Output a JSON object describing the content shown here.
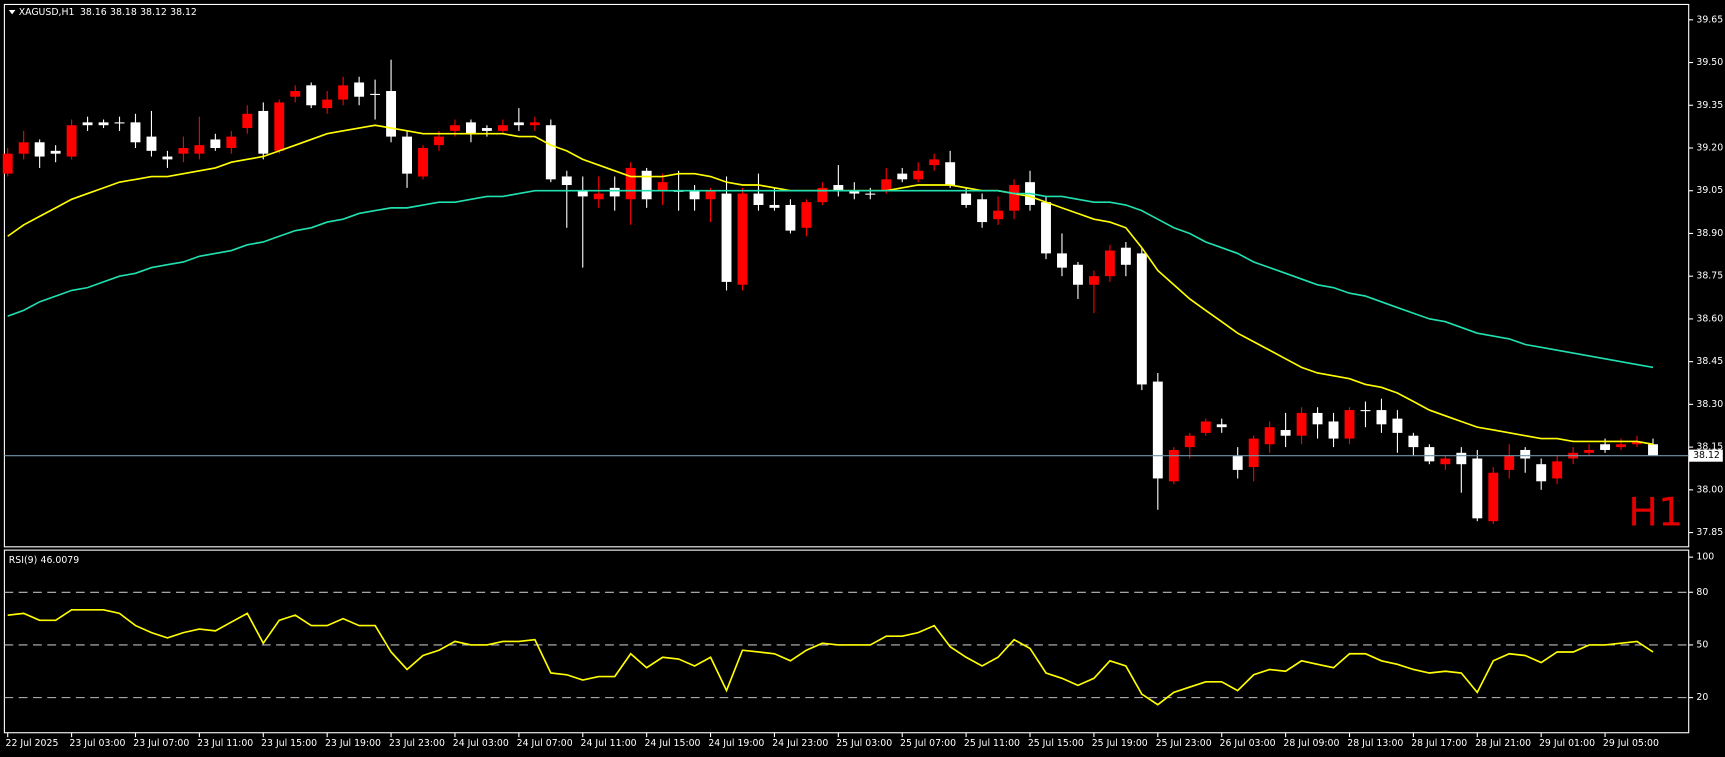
{
  "chart_data": [
    {
      "type": "candlestick",
      "title": "XAGUSD,H1",
      "watermark": "H1",
      "categories": [
        "22 Jul 2025",
        null,
        null,
        null,
        "23 Jul 03:00",
        null,
        null,
        null,
        "23 Jul 07:00",
        null,
        null,
        null,
        "23 Jul 11:00",
        null,
        null,
        null,
        "23 Jul 15:00",
        null,
        null,
        null,
        "23 Jul 19:00",
        null,
        null,
        null,
        "23 Jul 23:00",
        null,
        null,
        null,
        "24 Jul 03:00",
        null,
        null,
        null,
        "24 Jul 07:00",
        null,
        null,
        null,
        "24 Jul 11:00",
        null,
        null,
        null,
        "24 Jul 15:00",
        null,
        null,
        null,
        "24 Jul 19:00",
        null,
        null,
        null,
        "24 Jul 23:00",
        null,
        null,
        null,
        "25 Jul 03:00",
        null,
        null,
        null,
        "25 Jul 07:00",
        null,
        null,
        null,
        "25 Jul 11:00",
        null,
        null,
        null,
        "25 Jul 15:00",
        null,
        null,
        null,
        "25 Jul 19:00",
        null,
        null,
        null,
        "25 Jul 23:00",
        null,
        null,
        null,
        "26 Jul 03:00",
        null,
        null,
        null,
        "28 Jul 09:00",
        null,
        null,
        null,
        "28 Jul 13:00",
        null,
        null,
        null,
        "28 Jul 17:00",
        null,
        null,
        null,
        "28 Jul 21:00",
        null,
        null,
        null,
        "29 Jul 01:00",
        null,
        null,
        null,
        "29 Jul 05:00",
        null,
        null,
        null
      ],
      "series": [
        {
          "up_color": "#ff0000",
          "down_color": "#ffffff",
          "open": [
            39.11,
            39.18,
            39.22,
            39.19,
            39.17,
            39.29,
            39.29,
            39.29,
            39.29,
            39.24,
            39.17,
            39.18,
            39.18,
            39.23,
            39.2,
            39.27,
            39.33,
            39.19,
            39.38,
            39.42,
            39.34,
            39.37,
            39.43,
            39.39,
            39.4,
            39.24,
            39.1,
            39.21,
            39.26,
            39.29,
            39.27,
            39.26,
            39.29,
            39.28,
            39.28,
            39.1,
            39.05,
            39.02,
            39.06,
            39.02,
            39.12,
            39.05,
            39.05,
            39.05,
            39.02,
            39.04,
            38.72,
            39.04,
            39.0,
            39.0,
            38.92,
            39.01,
            39.07,
            39.05,
            39.04,
            39.05,
            39.11,
            39.09,
            39.14,
            39.15,
            39.04,
            39.02,
            38.95,
            38.98,
            39.08,
            39.01,
            38.83,
            38.79,
            38.72,
            38.75,
            38.85,
            38.83,
            38.38,
            38.03,
            38.15,
            38.2,
            38.23,
            38.12,
            38.08,
            38.16,
            38.21,
            38.19,
            38.27,
            38.24,
            38.18,
            38.28,
            38.28,
            38.25,
            38.19,
            38.15,
            38.09,
            38.13,
            38.11,
            37.89,
            38.07,
            38.14,
            38.09,
            38.04,
            38.11,
            38.13,
            38.16,
            38.15,
            38.16,
            38.16
          ],
          "high": [
            39.2,
            39.26,
            39.23,
            39.21,
            39.3,
            39.31,
            39.3,
            39.31,
            39.32,
            39.33,
            39.19,
            39.24,
            39.31,
            39.25,
            39.26,
            39.35,
            39.36,
            39.37,
            39.42,
            39.43,
            39.4,
            39.45,
            39.45,
            39.44,
            39.51,
            39.26,
            39.21,
            39.26,
            39.3,
            39.3,
            39.28,
            39.3,
            39.34,
            39.31,
            39.3,
            39.12,
            39.1,
            39.1,
            39.1,
            39.15,
            39.13,
            39.11,
            39.12,
            39.07,
            39.06,
            39.1,
            39.06,
            39.11,
            39.06,
            39.02,
            39.02,
            39.08,
            39.14,
            39.08,
            39.06,
            39.13,
            39.13,
            39.15,
            39.18,
            39.19,
            39.06,
            39.04,
            39.03,
            39.09,
            39.12,
            39.03,
            38.9,
            38.8,
            38.77,
            38.86,
            38.87,
            38.85,
            38.41,
            38.15,
            38.2,
            38.25,
            38.25,
            38.15,
            38.19,
            38.24,
            38.27,
            38.29,
            38.29,
            38.27,
            38.29,
            38.31,
            38.32,
            38.28,
            38.2,
            38.16,
            38.12,
            38.15,
            38.14,
            38.08,
            38.16,
            38.15,
            38.11,
            38.12,
            38.15,
            38.16,
            38.18,
            38.18,
            38.19,
            38.18
          ],
          "low": [
            39.1,
            39.16,
            39.13,
            39.15,
            39.16,
            39.26,
            39.27,
            39.26,
            39.2,
            39.17,
            39.13,
            39.15,
            39.16,
            39.19,
            39.18,
            39.25,
            39.16,
            39.18,
            39.36,
            39.34,
            39.32,
            39.35,
            39.35,
            39.3,
            39.22,
            39.06,
            39.09,
            39.19,
            39.24,
            39.22,
            39.24,
            39.25,
            39.26,
            39.26,
            39.08,
            38.92,
            38.78,
            38.99,
            38.98,
            38.93,
            38.99,
            39.0,
            38.98,
            38.98,
            38.94,
            38.7,
            38.7,
            38.98,
            38.98,
            38.9,
            38.89,
            39.0,
            39.03,
            39.02,
            39.02,
            39.04,
            39.08,
            39.08,
            39.12,
            39.06,
            38.99,
            38.92,
            38.93,
            38.95,
            38.98,
            38.81,
            38.75,
            38.67,
            38.62,
            38.73,
            38.75,
            38.35,
            37.93,
            38.02,
            38.11,
            38.19,
            38.2,
            38.04,
            38.03,
            38.13,
            38.15,
            38.16,
            38.18,
            38.15,
            38.16,
            38.22,
            38.2,
            38.13,
            38.12,
            38.09,
            38.07,
            37.99,
            37.89,
            37.88,
            38.04,
            38.06,
            38.0,
            38.02,
            38.09,
            38.12,
            38.13,
            38.14,
            38.15,
            38.12
          ],
          "close": [
            39.18,
            39.22,
            39.17,
            39.18,
            39.28,
            39.28,
            39.28,
            39.29,
            39.22,
            39.19,
            39.16,
            39.2,
            39.21,
            39.2,
            39.24,
            39.32,
            39.18,
            39.36,
            39.4,
            39.35,
            39.37,
            39.42,
            39.38,
            39.39,
            39.24,
            39.11,
            39.2,
            39.24,
            39.28,
            39.25,
            39.26,
            39.28,
            39.28,
            39.29,
            39.09,
            39.07,
            39.03,
            39.04,
            39.03,
            39.13,
            39.02,
            39.08,
            39.05,
            39.02,
            39.05,
            38.73,
            39.04,
            39.0,
            38.99,
            38.91,
            39.01,
            39.06,
            39.05,
            39.04,
            39.04,
            39.09,
            39.09,
            39.12,
            39.16,
            39.07,
            39.0,
            38.94,
            38.98,
            39.07,
            39.0,
            38.83,
            38.78,
            38.72,
            38.75,
            38.84,
            38.79,
            38.37,
            38.04,
            38.14,
            38.19,
            38.24,
            38.22,
            38.07,
            38.18,
            38.22,
            38.19,
            38.27,
            38.23,
            38.18,
            38.28,
            38.28,
            38.23,
            38.2,
            38.15,
            38.1,
            38.11,
            38.09,
            37.9,
            38.06,
            38.12,
            38.11,
            38.03,
            38.1,
            38.13,
            38.14,
            38.14,
            38.16,
            38.17,
            38.12
          ]
        }
      ],
      "lines": [
        {
          "color": "#ffff00",
          "values": [
            38.89,
            38.93,
            38.96,
            38.99,
            39.02,
            39.04,
            39.06,
            39.08,
            39.09,
            39.1,
            39.1,
            39.11,
            39.12,
            39.13,
            39.15,
            39.16,
            39.17,
            39.19,
            39.21,
            39.23,
            39.25,
            39.26,
            39.27,
            39.28,
            39.27,
            39.26,
            39.25,
            39.25,
            39.25,
            39.25,
            39.25,
            39.25,
            39.24,
            39.24,
            39.21,
            39.19,
            39.16,
            39.14,
            39.12,
            39.1,
            39.1,
            39.1,
            39.11,
            39.11,
            39.1,
            39.08,
            39.07,
            39.07,
            39.06,
            39.05,
            39.05,
            39.05,
            39.05,
            39.05,
            39.05,
            39.05,
            39.06,
            39.07,
            39.07,
            39.07,
            39.06,
            39.05,
            39.05,
            39.04,
            39.03,
            39.01,
            38.99,
            38.97,
            38.95,
            38.94,
            38.92,
            38.85,
            38.77,
            38.72,
            38.67,
            38.63,
            38.59,
            38.55,
            38.52,
            38.49,
            38.46,
            38.43,
            38.41,
            38.4,
            38.39,
            38.37,
            38.36,
            38.34,
            38.31,
            38.28,
            38.26,
            38.24,
            38.22,
            38.21,
            38.2,
            38.19,
            38.18,
            38.18,
            38.17,
            38.17,
            38.17,
            38.17,
            38.17,
            38.16
          ]
        },
        {
          "color": "#20e0b0",
          "values": [
            38.61,
            38.63,
            38.66,
            38.68,
            38.7,
            38.71,
            38.73,
            38.75,
            38.76,
            38.78,
            38.79,
            38.8,
            38.82,
            38.83,
            38.84,
            38.86,
            38.87,
            38.89,
            38.91,
            38.92,
            38.94,
            38.95,
            38.97,
            38.98,
            38.99,
            38.99,
            39.0,
            39.01,
            39.01,
            39.02,
            39.03,
            39.03,
            39.04,
            39.05,
            39.05,
            39.05,
            39.05,
            39.05,
            39.05,
            39.05,
            39.05,
            39.05,
            39.05,
            39.05,
            39.05,
            39.05,
            39.05,
            39.05,
            39.05,
            39.05,
            39.05,
            39.05,
            39.05,
            39.05,
            39.05,
            39.05,
            39.05,
            39.05,
            39.05,
            39.05,
            39.05,
            39.05,
            39.05,
            39.04,
            39.04,
            39.03,
            39.03,
            39.02,
            39.01,
            39.01,
            39.0,
            38.98,
            38.95,
            38.92,
            38.9,
            38.87,
            38.85,
            38.83,
            38.8,
            38.78,
            38.76,
            38.74,
            38.72,
            38.71,
            38.69,
            38.68,
            38.66,
            38.64,
            38.62,
            38.6,
            38.59,
            38.57,
            38.55,
            38.54,
            38.53,
            38.51,
            38.5,
            38.49,
            38.48,
            38.47,
            38.46,
            38.45,
            38.44,
            38.43
          ]
        }
      ],
      "price_line_color": "#6f95a8",
      "ylim": [
        37.8,
        39.7
      ],
      "yticks": [
        39.65,
        {
          "value": 39.5,
          "label": "39.50"
        },
        39.35,
        {
          "value": 39.2,
          "label": "39.20"
        },
        39.05,
        {
          "value": 38.9,
          "label": "38.90"
        },
        38.75,
        {
          "value": 38.6,
          "label": "38.60"
        },
        38.45,
        {
          "value": 38.3,
          "label": "38.30"
        },
        38.15,
        {
          "value": 38.0,
          "label": "38.00"
        },
        37.85
      ]
    },
    {
      "type": "line",
      "title": "RSI(9)",
      "color": "#ffff00",
      "values": [
        67,
        68,
        64,
        64,
        70,
        70,
        70,
        68,
        61,
        57,
        54,
        57,
        59,
        58,
        63,
        68,
        51,
        64,
        67,
        61,
        61,
        65,
        61,
        61,
        46,
        36,
        44,
        47,
        52,
        50,
        50,
        52,
        52,
        53,
        34,
        33,
        30,
        32,
        32,
        45,
        37,
        43,
        42,
        38,
        43,
        24,
        47,
        46,
        45,
        41,
        47,
        51,
        50,
        50,
        50,
        55,
        55,
        57,
        61,
        49,
        43,
        38,
        43,
        53,
        48,
        34,
        31,
        27,
        31,
        41,
        38,
        22,
        16,
        23,
        26,
        29,
        29,
        24,
        33,
        36,
        35,
        41,
        39,
        37,
        45,
        45,
        41,
        39,
        36,
        34,
        35,
        34,
        23,
        41,
        45,
        44,
        40,
        46,
        46,
        50,
        50,
        51,
        52,
        46.0079
      ],
      "ylim": [
        0,
        104
      ],
      "yticks": [
        100,
        80,
        50,
        20
      ],
      "levels": [
        80,
        50,
        20
      ]
    }
  ]
}
